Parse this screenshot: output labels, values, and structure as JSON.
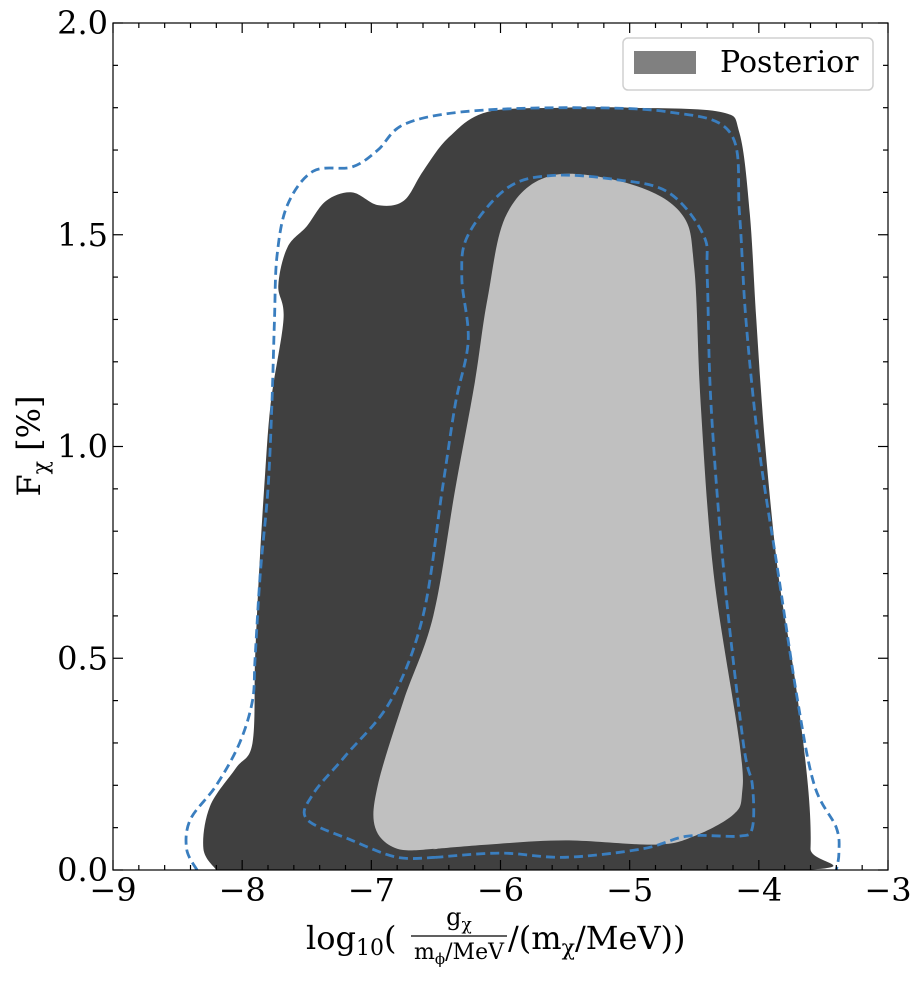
{
  "chart_data": {
    "type": "contour",
    "xlabel": {
      "prefix": "log",
      "sub10": "10",
      "open": "(",
      "frac_num": "g",
      "frac_num_sub": "χ",
      "frac_den_a": "m",
      "frac_den_sub": "ϕ",
      "frac_den_b": "/MeV",
      "rest_a": "/(m",
      "rest_sub": "χ",
      "rest_b": "/MeV))"
    },
    "ylabel": {
      "main": "F",
      "sub": "χ",
      "rest": " [%]"
    },
    "xlim": [
      -9,
      -3
    ],
    "ylim": [
      0,
      2
    ],
    "x_ticks": [
      -9,
      -8,
      -7,
      -6,
      -5,
      -4,
      -3
    ],
    "x_tick_labels": [
      "−9",
      "−8",
      "−7",
      "−6",
      "−5",
      "−4",
      "−3"
    ],
    "y_ticks": [
      0,
      0.5,
      1,
      1.5,
      2
    ],
    "y_tick_labels": [
      "0.0",
      "0.5",
      "1.0",
      "1.5",
      "2.0"
    ],
    "legend": {
      "position": "top-right",
      "entries": [
        {
          "label": "Posterior",
          "color": "#808080"
        }
      ]
    },
    "colors": {
      "outer_fill": "#404040",
      "inner_fill": "#c0c0c0",
      "dashed": "#3a7ebf"
    },
    "regions": [
      {
        "level": "outer",
        "style": "fill",
        "points": [
          [
            -8.2,
            0
          ],
          [
            -8.3,
            0.05
          ],
          [
            -8.25,
            0.15
          ],
          [
            -8.05,
            0.24
          ],
          [
            -7.92,
            0.3
          ],
          [
            -7.9,
            0.5
          ],
          [
            -7.87,
            0.7
          ],
          [
            -7.83,
            0.9
          ],
          [
            -7.78,
            1.1
          ],
          [
            -7.68,
            1.3
          ],
          [
            -7.72,
            1.38
          ],
          [
            -7.65,
            1.47
          ],
          [
            -7.5,
            1.52
          ],
          [
            -7.35,
            1.58
          ],
          [
            -7.15,
            1.6
          ],
          [
            -6.95,
            1.57
          ],
          [
            -6.75,
            1.58
          ],
          [
            -6.6,
            1.65
          ],
          [
            -6.4,
            1.73
          ],
          [
            -6.1,
            1.79
          ],
          [
            -5.5,
            1.8
          ],
          [
            -5,
            1.8
          ],
          [
            -4.3,
            1.79
          ],
          [
            -4.15,
            1.74
          ],
          [
            -4.07,
            1.55
          ],
          [
            -4.02,
            1.3
          ],
          [
            -3.95,
            1
          ],
          [
            -3.85,
            0.7
          ],
          [
            -3.72,
            0.45
          ],
          [
            -3.62,
            0.2
          ],
          [
            -3.6,
            0.05
          ],
          [
            -3.65,
            0
          ],
          [
            -6.5,
            0
          ],
          [
            -8.2,
            0
          ]
        ]
      },
      {
        "level": "inner",
        "style": "fill",
        "points": [
          [
            -6.5,
            0.05
          ],
          [
            -6.8,
            0.05
          ],
          [
            -6.97,
            0.1
          ],
          [
            -6.95,
            0.2
          ],
          [
            -6.75,
            0.4
          ],
          [
            -6.52,
            0.6
          ],
          [
            -6.35,
            0.9
          ],
          [
            -6.2,
            1.15
          ],
          [
            -6.1,
            1.35
          ],
          [
            -5.95,
            1.55
          ],
          [
            -5.6,
            1.64
          ],
          [
            -5,
            1.62
          ],
          [
            -4.6,
            1.55
          ],
          [
            -4.5,
            1.42
          ],
          [
            -4.45,
            1.1
          ],
          [
            -4.35,
            0.7
          ],
          [
            -4.15,
            0.3
          ],
          [
            -4.13,
            0.18
          ],
          [
            -4.2,
            0.13
          ],
          [
            -4.5,
            0.08
          ],
          [
            -4.8,
            0.06
          ],
          [
            -5.5,
            0.07
          ],
          [
            -6.1,
            0.06
          ],
          [
            -6.5,
            0.05
          ]
        ]
      },
      {
        "level": "outer",
        "style": "dashed",
        "points": [
          [
            -8.35,
            0
          ],
          [
            -8.43,
            0.05
          ],
          [
            -8.4,
            0.12
          ],
          [
            -8.2,
            0.2
          ],
          [
            -8.02,
            0.3
          ],
          [
            -7.92,
            0.4
          ],
          [
            -7.9,
            0.5
          ],
          [
            -7.86,
            0.7
          ],
          [
            -7.8,
            0.9
          ],
          [
            -7.77,
            1.1
          ],
          [
            -7.75,
            1.3
          ],
          [
            -7.73,
            1.45
          ],
          [
            -7.65,
            1.57
          ],
          [
            -7.45,
            1.65
          ],
          [
            -7.15,
            1.66
          ],
          [
            -6.95,
            1.7
          ],
          [
            -6.75,
            1.76
          ],
          [
            -6.3,
            1.79
          ],
          [
            -5.5,
            1.8
          ],
          [
            -4.7,
            1.79
          ],
          [
            -4.22,
            1.74
          ],
          [
            -4.15,
            1.55
          ],
          [
            -4.1,
            1.3
          ],
          [
            -4,
            1
          ],
          [
            -3.85,
            0.7
          ],
          [
            -3.7,
            0.4
          ],
          [
            -3.57,
            0.2
          ],
          [
            -3.4,
            0.1
          ],
          [
            -3.38,
            0.04
          ],
          [
            -3.4,
            0
          ]
        ]
      },
      {
        "level": "inner",
        "style": "dashed",
        "points": [
          [
            -6.5,
            0.03
          ],
          [
            -6.8,
            0.03
          ],
          [
            -7.15,
            0.07
          ],
          [
            -7.5,
            0.12
          ],
          [
            -7.45,
            0.18
          ],
          [
            -7.2,
            0.27
          ],
          [
            -6.85,
            0.4
          ],
          [
            -6.6,
            0.6
          ],
          [
            -6.45,
            0.9
          ],
          [
            -6.35,
            1.1
          ],
          [
            -6.25,
            1.25
          ],
          [
            -6.3,
            1.4
          ],
          [
            -6.25,
            1.5
          ],
          [
            -5.95,
            1.61
          ],
          [
            -5.6,
            1.64
          ],
          [
            -5.1,
            1.63
          ],
          [
            -4.7,
            1.6
          ],
          [
            -4.43,
            1.5
          ],
          [
            -4.4,
            1.4
          ],
          [
            -4.37,
            1.1
          ],
          [
            -4.27,
            0.7
          ],
          [
            -4.12,
            0.3
          ],
          [
            -4.05,
            0.2
          ],
          [
            -4.05,
            0.1
          ],
          [
            -4.15,
            0.08
          ],
          [
            -4.55,
            0.08
          ],
          [
            -4.9,
            0.05
          ],
          [
            -5.5,
            0.03
          ],
          [
            -6,
            0.04
          ],
          [
            -6.5,
            0.03
          ]
        ]
      }
    ]
  }
}
